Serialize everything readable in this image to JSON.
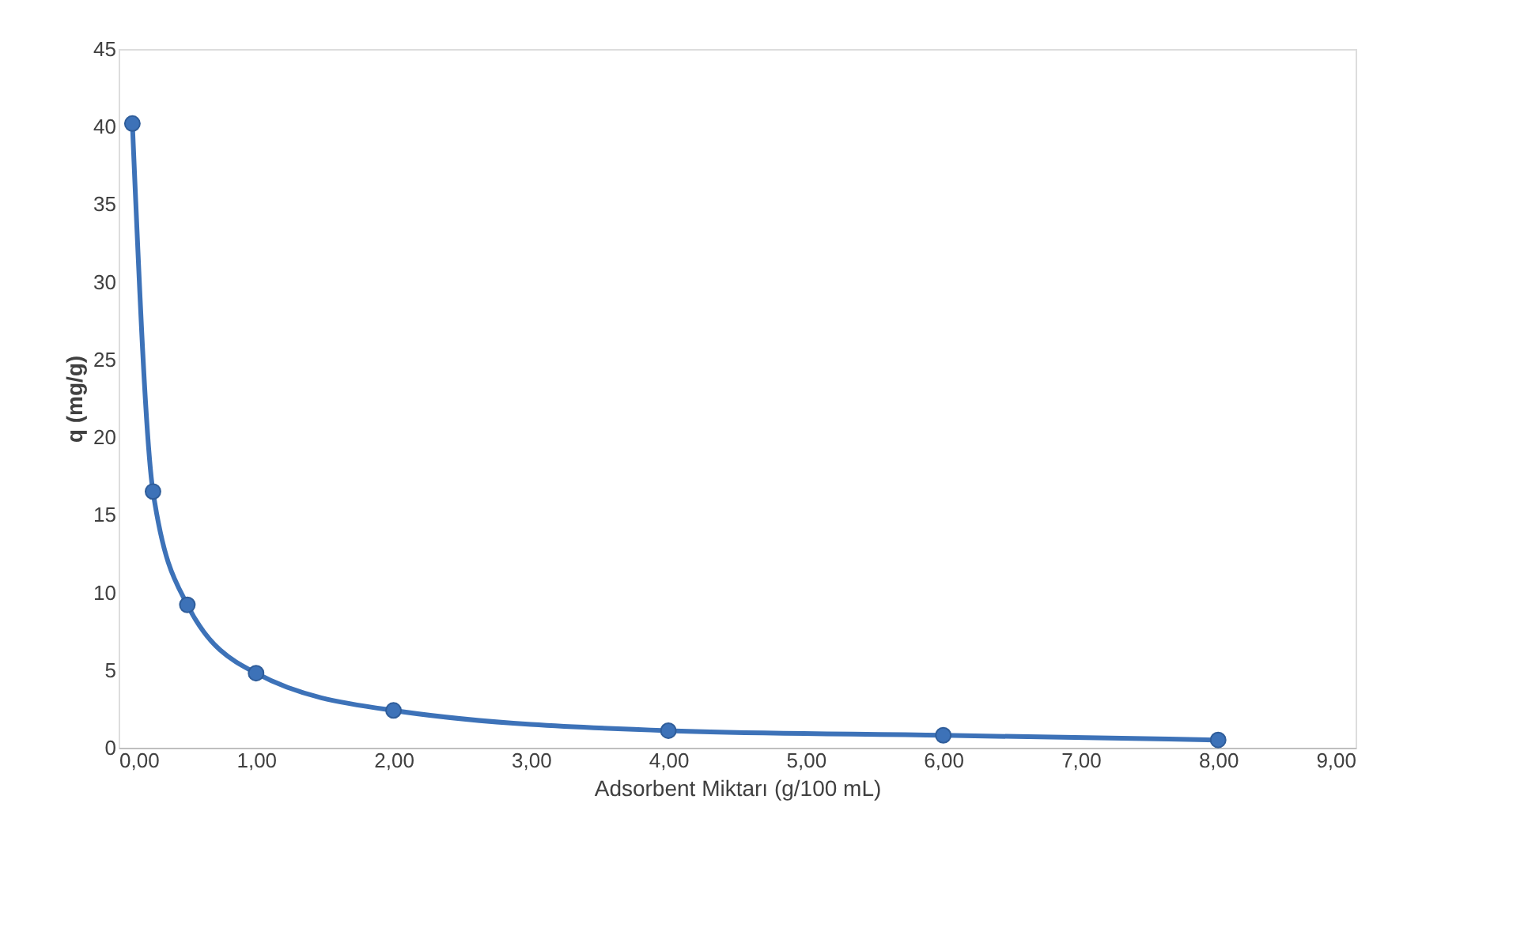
{
  "chart_data": {
    "type": "line",
    "xlabel": "Adsorbent Miktarı (g/100 mL)",
    "ylabel": "q (mg/g)",
    "x": [
      0.1,
      0.25,
      0.5,
      1.0,
      2.0,
      4.0,
      6.0,
      8.0
    ],
    "series": [
      {
        "color": "#3d72b8",
        "values": [
          40.2,
          16.5,
          9.2,
          4.8,
          2.4,
          1.1,
          0.8,
          0.5
        ]
      }
    ],
    "xlim": [
      0,
      9
    ],
    "xticks": [
      {
        "value": 0,
        "label": "0,00"
      },
      {
        "value": 1,
        "label": "1,00"
      },
      {
        "value": 2,
        "label": "2,00"
      },
      {
        "value": 3,
        "label": "3,00"
      },
      {
        "value": 4,
        "label": "4,00"
      },
      {
        "value": 5,
        "label": "5,00"
      },
      {
        "value": 6,
        "label": "6,00"
      },
      {
        "value": 7,
        "label": "7,00"
      },
      {
        "value": 8,
        "label": "8,00"
      },
      {
        "value": 9,
        "label": "9,00"
      }
    ],
    "ylim": [
      0,
      45
    ],
    "yticks": [
      0,
      5,
      10,
      15,
      20,
      25,
      30,
      35,
      40,
      45
    ],
    "grid": false,
    "marker": "circle",
    "line_style": "solid"
  }
}
